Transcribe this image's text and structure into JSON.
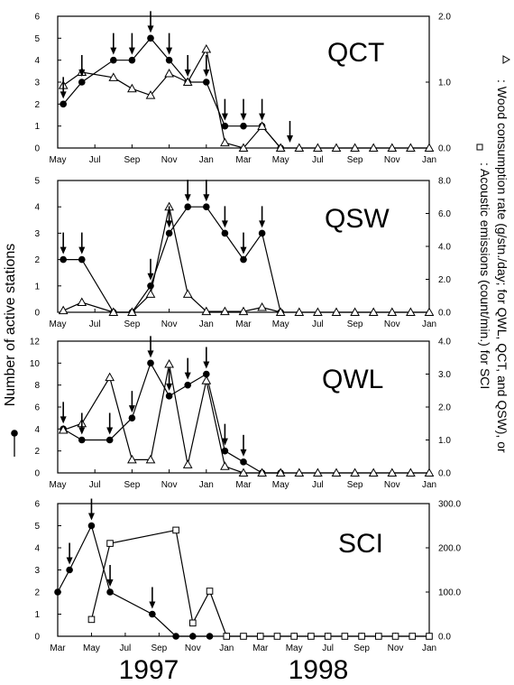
{
  "figure": {
    "ylabel_left": "Number of active stations",
    "ylabel_right_line1": ": Wood consumption rate (g/stn./day; for QWL, QCT, and QSW), or",
    "ylabel_right_line2": ": Acoustic emissions (count/min.) for SCI",
    "years": [
      "1997",
      "1998"
    ]
  },
  "chart_data": [
    {
      "type": "line",
      "panel": "QCT",
      "title": "QCT",
      "x_ticks": [
        "May",
        "Jul",
        "Sep",
        "Nov",
        "Jan",
        "Mar",
        "May",
        "Jul",
        "Sep",
        "Nov",
        "Jan"
      ],
      "xlim": [
        0,
        20
      ],
      "ylim_left": [
        0,
        6
      ],
      "y_ticks_left": [
        "0",
        "1",
        "2",
        "3",
        "4",
        "5",
        "6"
      ],
      "ylim_right": [
        0,
        2.0
      ],
      "y_ticks_right": [
        "0.0",
        "1.0",
        "2.0"
      ],
      "series": [
        {
          "marker": "filled-circle",
          "axis": "left",
          "x": [
            0.3,
            1.3,
            3,
            4,
            5,
            6,
            7,
            8,
            9,
            10,
            11,
            12
          ],
          "y": [
            2,
            3,
            4,
            4,
            5,
            4,
            3,
            3,
            1,
            1,
            1,
            0
          ]
        },
        {
          "marker": "open-triangle",
          "axis": "right",
          "x": [
            0.3,
            1.3,
            3,
            4,
            5,
            6,
            7,
            8,
            9,
            10,
            11,
            12,
            13,
            14,
            15,
            16,
            17,
            18,
            19,
            20
          ],
          "y": [
            0.95,
            1.15,
            1.07,
            0.9,
            0.8,
            1.13,
            1.0,
            1.5,
            0.08,
            0.0,
            0.33,
            0,
            0,
            0,
            0,
            0,
            0,
            0,
            0,
            0
          ]
        }
      ],
      "arrows_x": [
        0.3,
        1.3,
        3,
        4,
        5,
        6,
        7,
        8,
        9,
        10,
        11,
        12.5
      ]
    },
    {
      "type": "line",
      "panel": "QSW",
      "title": "QSW",
      "x_ticks": [
        "May",
        "Jul",
        "Sep",
        "Nov",
        "Jan",
        "Mar",
        "May",
        "Jul",
        "Sep",
        "Nov",
        "Jan"
      ],
      "xlim": [
        0,
        20
      ],
      "ylim_left": [
        0,
        5
      ],
      "y_ticks_left": [
        "0",
        "1",
        "2",
        "3",
        "4",
        "5"
      ],
      "ylim_right": [
        0,
        8.0
      ],
      "y_ticks_right": [
        "0.0",
        "2.0",
        "4.0",
        "6.0",
        "8.0"
      ],
      "series": [
        {
          "marker": "filled-circle",
          "axis": "left",
          "x": [
            0.3,
            1.3,
            3,
            4,
            5,
            6,
            7,
            8,
            9,
            10,
            11,
            12
          ],
          "y": [
            2,
            2,
            0,
            0,
            1,
            3,
            4,
            4,
            3,
            2,
            3,
            0
          ]
        },
        {
          "marker": "open-triangle",
          "axis": "right",
          "x": [
            0.3,
            1.3,
            3,
            4,
            5,
            6,
            7,
            8,
            9,
            10,
            11,
            12,
            13,
            14,
            15,
            16,
            17,
            18,
            19,
            20
          ],
          "y": [
            0.1,
            0.6,
            0,
            0,
            1.1,
            6.4,
            1.1,
            0.05,
            0.05,
            0.05,
            0.3,
            0,
            0,
            0,
            0,
            0,
            0,
            0,
            0,
            0
          ]
        }
      ],
      "arrows_x": [
        0.3,
        1.3,
        5,
        6,
        7,
        8,
        9,
        10,
        11
      ]
    },
    {
      "type": "line",
      "panel": "QWL",
      "title": "QWL",
      "x_ticks": [
        "May",
        "Jul",
        "Sep",
        "Nov",
        "Jan",
        "Mar",
        "May",
        "Jul",
        "Sep",
        "Nov",
        "Jan"
      ],
      "xlim": [
        0,
        20
      ],
      "ylim_left": [
        0,
        12
      ],
      "y_ticks_left": [
        "0",
        "2",
        "4",
        "6",
        "8",
        "10",
        "12"
      ],
      "ylim_right": [
        0,
        4.0
      ],
      "y_ticks_right": [
        "0.0",
        "1.0",
        "2.0",
        "3.0",
        "4.0"
      ],
      "series": [
        {
          "marker": "filled-circle",
          "axis": "left",
          "x": [
            0.3,
            1.3,
            2.8,
            4,
            5,
            6,
            7,
            8,
            9,
            10,
            11,
            12
          ],
          "y": [
            4,
            3,
            3,
            5,
            10,
            7,
            8,
            9,
            2,
            1,
            0,
            0
          ]
        },
        {
          "marker": "open-triangle",
          "axis": "right",
          "x": [
            0.3,
            1.3,
            2.8,
            4,
            5,
            6,
            7,
            8,
            9,
            10,
            11,
            12,
            13,
            14,
            15,
            16,
            17,
            18,
            19,
            20
          ],
          "y": [
            1.3,
            1.5,
            2.9,
            0.4,
            0.4,
            3.3,
            0.25,
            2.8,
            0.2,
            0.0,
            0,
            0,
            0,
            0,
            0,
            0,
            0,
            0,
            0,
            0
          ]
        }
      ],
      "arrows_x": [
        0.3,
        1.3,
        2.8,
        4,
        5,
        6,
        7,
        8,
        9,
        10
      ]
    },
    {
      "type": "line",
      "panel": "SCI",
      "title": "SCI",
      "x_ticks": [
        "Mar",
        "May",
        "Jul",
        "Sep",
        "Nov",
        "Jan",
        "Mar",
        "May",
        "Jul",
        "Sep",
        "Nov",
        "Jan"
      ],
      "xlim": [
        0,
        22
      ],
      "ylim_left": [
        0,
        6
      ],
      "y_ticks_left": [
        "0",
        "1",
        "2",
        "3",
        "4",
        "5",
        "6"
      ],
      "ylim_right": [
        0,
        300.0
      ],
      "y_ticks_right": [
        "0.0",
        "100.0",
        "200.0",
        "300.0"
      ],
      "series": [
        {
          "marker": "filled-circle",
          "axis": "left",
          "x": [
            0,
            0.7,
            2,
            3.1,
            5.6,
            7,
            8,
            9
          ],
          "y": [
            2,
            3,
            5,
            2,
            1,
            0,
            0,
            0
          ]
        },
        {
          "marker": "open-square",
          "axis": "right",
          "x": [
            2,
            3.1,
            7,
            8,
            9,
            10,
            11,
            12,
            13,
            14,
            15,
            16,
            17,
            18,
            19,
            20,
            21,
            22
          ],
          "y": [
            38,
            210,
            240,
            30,
            102,
            0,
            0,
            0,
            0,
            0,
            0,
            0,
            0,
            0,
            0,
            0,
            0,
            0
          ]
        }
      ],
      "arrows_x": [
        0.7,
        2,
        3.1,
        5.6
      ]
    }
  ]
}
